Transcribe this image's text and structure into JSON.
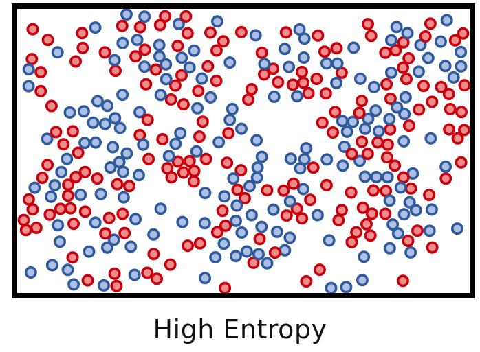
{
  "caption": "High Entropy",
  "colors": {
    "red_fill": "#f28b8b",
    "red_stroke": "#c8000c",
    "blue_fill": "#aebfe6",
    "blue_stroke": "#2f5a9c",
    "border": "#000000"
  }
}
